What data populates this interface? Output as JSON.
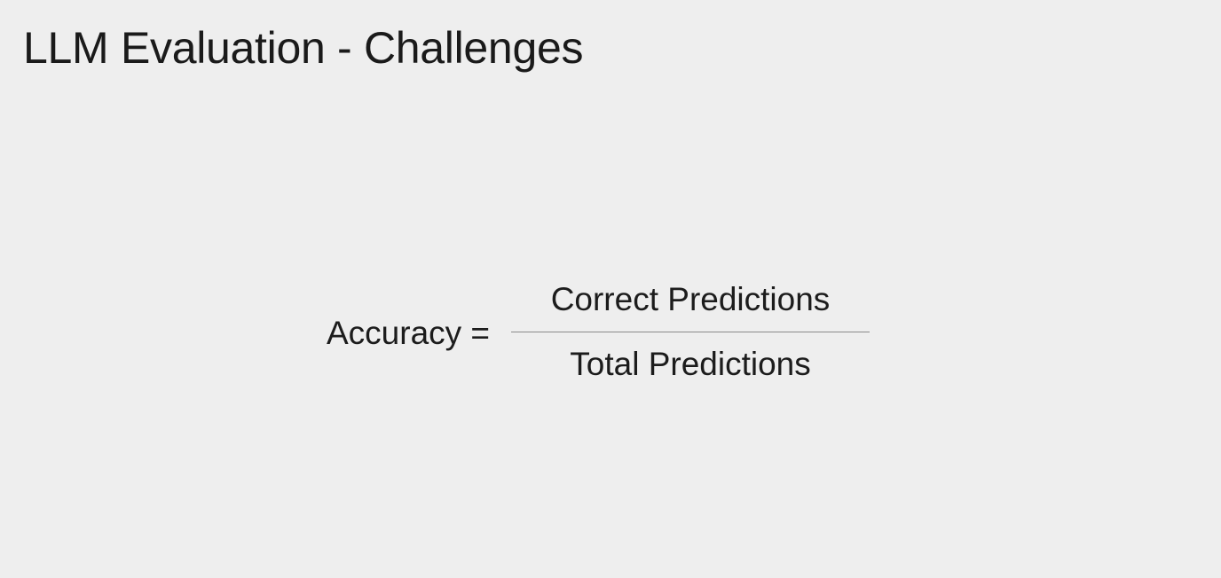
{
  "slide": {
    "title": "LLM Evaluation - Challenges"
  },
  "formula": {
    "lhs": "Accuracy =",
    "numerator": "Correct Predictions",
    "denominator": "Total Predictions"
  },
  "colors": {
    "background": "#eeeeee",
    "text": "#1c1c1c",
    "fraction_bar": "#8a8a8a"
  }
}
